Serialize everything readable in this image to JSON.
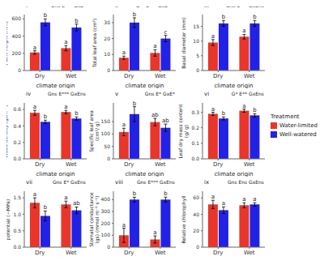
{
  "chart_data": [
    {
      "type": "bar",
      "title": "i",
      "annotation": "Gns E*** GxE*",
      "x_label": "climate origin",
      "y_label": "Plant height (mm)",
      "categories": [
        "Dry",
        "Wet"
      ],
      "series": [
        {
          "name": "Water-limited",
          "color": "#e8362b",
          "values": [
            210,
            260
          ],
          "errors": [
            20,
            30
          ],
          "letters": [
            "a",
            "a"
          ]
        },
        {
          "name": "Well-watered",
          "color": "#2222e6",
          "values": [
            560,
            500
          ],
          "errors": [
            40,
            40
          ],
          "letters": [
            "b",
            "b"
          ]
        }
      ],
      "ylim": [
        0,
        650
      ],
      "yticks": [
        0,
        200,
        400,
        600
      ]
    },
    {
      "type": "bar",
      "title": "ii",
      "annotation": "G** E*** GxE***",
      "x_label": "climate origin",
      "y_label": "Total leaf area (cm²)",
      "categories": [
        "Dry",
        "Wet"
      ],
      "series": [
        {
          "name": "Water-limited",
          "color": "#e8362b",
          "values": [
            8,
            11
          ],
          "errors": [
            1,
            2
          ],
          "letters": [
            "a",
            "a"
          ]
        },
        {
          "name": "Well-watered",
          "color": "#2222e6",
          "values": [
            30,
            20
          ],
          "errors": [
            3,
            2
          ],
          "letters": [
            "b",
            "c"
          ]
        }
      ],
      "ylim": [
        0,
        35
      ],
      "yticks": [
        0,
        10,
        20,
        30
      ]
    },
    {
      "type": "bar",
      "title": "iii",
      "annotation": "Gns E*** GxEns",
      "x_label": "climate origin",
      "y_label": "Basal diameter (mm)",
      "categories": [
        "Dry",
        "Wet"
      ],
      "series": [
        {
          "name": "Water-limited",
          "color": "#e8362b",
          "values": [
            9.5,
            11.5
          ],
          "errors": [
            1,
            0.8
          ],
          "letters": [
            "a",
            "a"
          ]
        },
        {
          "name": "Well-watered",
          "color": "#2222e6",
          "values": [
            16,
            16
          ],
          "errors": [
            1,
            1
          ],
          "letters": [
            "b",
            "b"
          ]
        }
      ],
      "ylim": [
        0,
        19
      ],
      "yticks": [
        0,
        5,
        10,
        15
      ]
    },
    {
      "type": "bar",
      "title": "iv",
      "annotation": "Gns E*** GxEns",
      "x_label": "climate origin",
      "y_label": "Wood density (gcm⁻³)",
      "categories": [
        "Dry",
        "Wet"
      ],
      "series": [
        {
          "name": "Water-limited",
          "color": "#e8362b",
          "values": [
            0.56,
            0.57
          ],
          "errors": [
            0.03,
            0.02
          ],
          "letters": [
            "a",
            "a"
          ]
        },
        {
          "name": "Well-watered",
          "color": "#2222e6",
          "values": [
            0.45,
            0.49
          ],
          "errors": [
            0.02,
            0.02
          ],
          "letters": [
            "b",
            "b"
          ]
        }
      ],
      "ylim": [
        0,
        0.68
      ],
      "yticks": [
        {
          "value": 0,
          "label": "0.0"
        },
        0.2,
        0.4,
        0.6
      ]
    },
    {
      "type": "bar",
      "title": "v",
      "annotation": "Gns E* GxE*",
      "x_label": "climate origin",
      "y_label": "Specific leaf area (cm²/ g)",
      "categories": [
        "Dry",
        "Wet"
      ],
      "series": [
        {
          "name": "Water-limited",
          "color": "#e8362b",
          "values": [
            108,
            148
          ],
          "errors": [
            15,
            15
          ],
          "letters": [
            "a",
            "ab"
          ]
        },
        {
          "name": "Well-watered",
          "color": "#2222e6",
          "values": [
            180,
            125
          ],
          "errors": [
            30,
            15
          ],
          "letters": [
            "b",
            "ab"
          ]
        }
      ],
      "ylim": [
        0,
        225
      ],
      "yticks": [
        0,
        50,
        100,
        150
      ]
    },
    {
      "type": "bar",
      "title": "vi",
      "annotation": "G* E** GxEns",
      "x_label": "climate origin",
      "y_label": "Leaf dry mass content (g/ g)",
      "legend": "right",
      "legend_title": "Treatment",
      "categories": [
        "Dry",
        "Wet"
      ],
      "series": [
        {
          "name": "Water-limited",
          "color": "#e8362b",
          "values": [
            0.29,
            0.31
          ],
          "errors": [
            0.01,
            0.01
          ],
          "letters": [
            "a",
            "a"
          ]
        },
        {
          "name": "Well-watered",
          "color": "#2222e6",
          "values": [
            0.26,
            0.28
          ],
          "errors": [
            0.01,
            0.01
          ],
          "letters": [
            "b",
            "b"
          ]
        }
      ],
      "ylim": [
        0,
        0.36
      ],
      "yticks": [
        {
          "value": 0,
          "label": "0.0"
        },
        0.1,
        0.2,
        0.3
      ]
    },
    {
      "type": "bar",
      "title": "vii",
      "annotation": "Gns E* GxEns",
      "x_label": "climate origin",
      "y_label": "Predawn water potential (−MPa)",
      "categories": [
        "Dry",
        "Wet"
      ],
      "series": [
        {
          "name": "Water-limited",
          "color": "#e8362b",
          "values": [
            1.35,
            1.3
          ],
          "errors": [
            0.15,
            0.1
          ],
          "letters": [
            "a",
            "a"
          ]
        },
        {
          "name": "Well-watered",
          "color": "#2222e6",
          "values": [
            0.95,
            1.12
          ],
          "errors": [
            0.15,
            0.1
          ],
          "letters": [
            "b",
            "ab"
          ]
        }
      ],
      "ylim": [
        0,
        1.7
      ],
      "yticks": [
        {
          "value": 0,
          "label": "0.0"
        },
        0.5,
        {
          "value": 1,
          "label": "1.0"
        },
        1.5
      ]
    },
    {
      "type": "bar",
      "title": "viii",
      "annotation": "Gns E*** GxEns",
      "x_label": "climate origin",
      "y_label": "Stomatal conductance (gs) (mmol m⁻² s⁻¹)",
      "categories": [
        "Dry",
        "Wet"
      ],
      "series": [
        {
          "name": "Water-limited",
          "color": "#e8362b",
          "values": [
            100,
            65
          ],
          "errors": [
            60,
            30
          ],
          "letters": [
            "a",
            "a"
          ]
        },
        {
          "name": "Well-watered",
          "color": "#2222e6",
          "values": [
            400,
            400
          ],
          "errors": [
            20,
            20
          ],
          "letters": [
            "b",
            "b"
          ]
        }
      ],
      "ylim": [
        0,
        470
      ],
      "yticks": [
        0,
        100,
        200,
        300,
        400
      ]
    },
    {
      "type": "bar",
      "title": "ix",
      "annotation": "Gns Ens GxEns",
      "x_label": "climate origin",
      "y_label": "Relative chlorophyll",
      "categories": [
        "Dry",
        "Wet"
      ],
      "series": [
        {
          "name": "Water-limited",
          "color": "#e8362b",
          "values": [
            52,
            51
          ],
          "errors": [
            5,
            3
          ],
          "letters": [
            "a",
            "a"
          ]
        },
        {
          "name": "Well-watered",
          "color": "#2222e6",
          "values": [
            45,
            52
          ],
          "errors": [
            4,
            2
          ],
          "letters": [
            "a",
            "a"
          ]
        }
      ],
      "ylim": [
        0,
        68
      ],
      "yticks": [
        0,
        20,
        40,
        60
      ]
    }
  ]
}
